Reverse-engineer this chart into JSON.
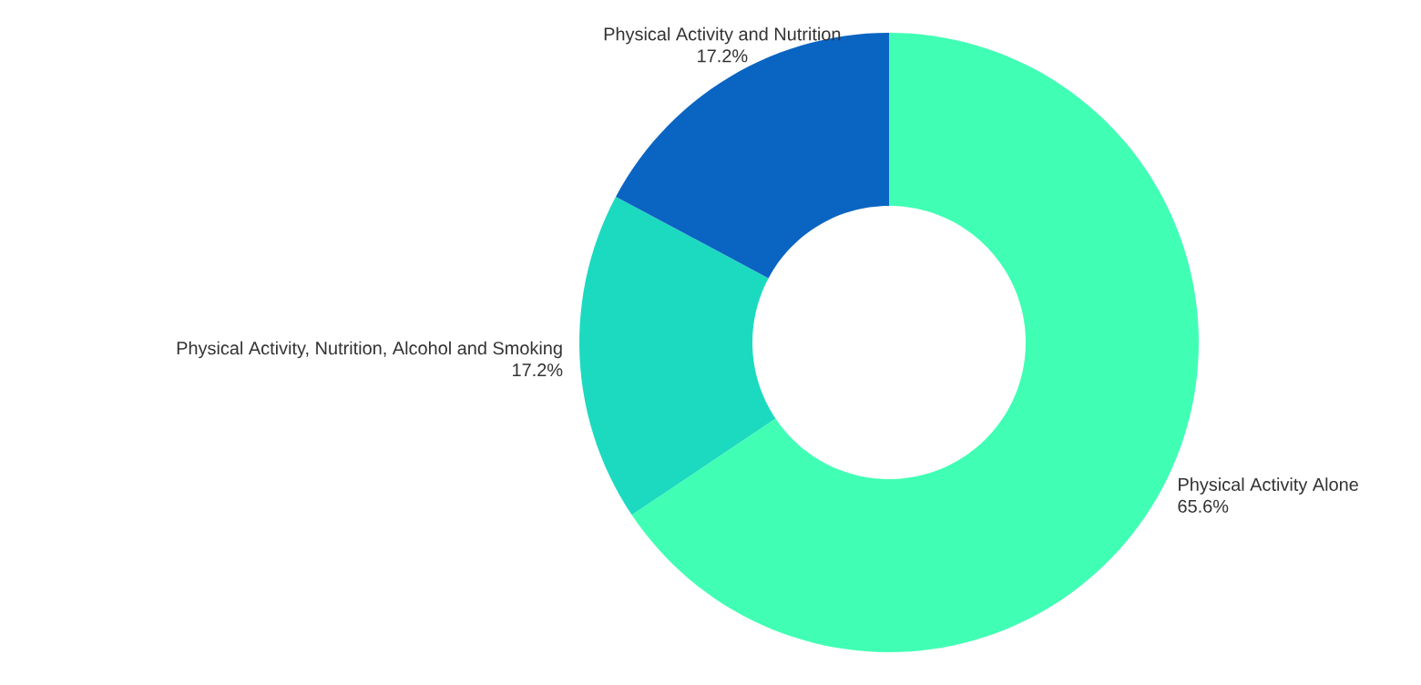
{
  "chart_data": {
    "type": "donut",
    "categories": [
      "Physical Activity Alone",
      "Physical Activity, Nutrition, Alcohol and Smoking",
      "Physical Activity and Nutrition"
    ],
    "values": [
      65.6,
      17.2,
      17.2
    ],
    "value_labels": [
      "65.6%",
      "17.2%",
      "17.2%"
    ],
    "colors": [
      "#40ffb4",
      "#1cdac0",
      "#0a64c2"
    ]
  }
}
